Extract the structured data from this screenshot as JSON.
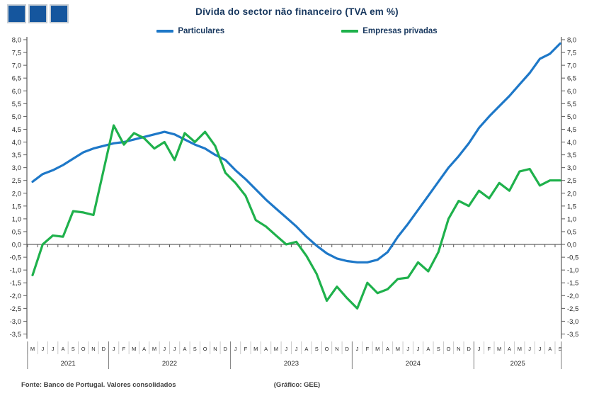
{
  "header": {
    "title": "Dívida do sector não financeiro (TVA em %)"
  },
  "logo": {
    "name": "three-blue-squares-logo",
    "square_color": "#15569e",
    "border_color": "#c6cdd4"
  },
  "footer": {
    "source": "Fonte: Banco de Portugal. Valores consolidados",
    "credit": "(Gráfico: GEE)"
  },
  "chart_data": {
    "type": "line",
    "title": "Dívida do sector não financeiro (TVA em %)",
    "xlabel": "",
    "ylabel": "",
    "ylim": [
      -3.5,
      8.0
    ],
    "y_step": 0.5,
    "grid": false,
    "legend_position": "top-center",
    "y_axis": {
      "tick_labels": [
        "8,0",
        "7,5",
        "7,0",
        "6,5",
        "6,0",
        "5,5",
        "5,0",
        "4,5",
        "4,0",
        "3,5",
        "3,0",
        "2,5",
        "2,0",
        "1,5",
        "1,0",
        "0,5",
        "0,0",
        "-0,5",
        "-1,0",
        "-1,5",
        "-2,0",
        "-2,5",
        "-3,0",
        "-3,5"
      ],
      "mirrored_right": true
    },
    "x_axis": {
      "years": [
        {
          "label": "2021",
          "months": [
            "M",
            "J",
            "J",
            "A",
            "S",
            "O",
            "N",
            "D"
          ]
        },
        {
          "label": "2022",
          "months": [
            "J",
            "F",
            "M",
            "A",
            "M",
            "J",
            "J",
            "A",
            "S",
            "O",
            "N",
            "D"
          ]
        },
        {
          "label": "2023",
          "months": [
            "J",
            "F",
            "M",
            "A",
            "M",
            "J",
            "J",
            "A",
            "S",
            "O",
            "N",
            "D"
          ]
        },
        {
          "label": "2024",
          "months": [
            "J",
            "F",
            "M",
            "A",
            "M",
            "J",
            "J",
            "A",
            "S",
            "O",
            "N",
            "D"
          ]
        },
        {
          "label": "2025",
          "months": [
            "J",
            "F",
            "M",
            "A",
            "M",
            "J",
            "J",
            "A",
            "S"
          ]
        }
      ]
    },
    "series": [
      {
        "name": "Particulares",
        "color": "#1e78c8",
        "values": [
          2.45,
          2.75,
          2.9,
          3.1,
          3.35,
          3.6,
          3.75,
          3.85,
          3.95,
          4.0,
          4.1,
          4.2,
          4.3,
          4.4,
          4.3,
          4.1,
          3.9,
          3.75,
          3.5,
          3.3,
          2.9,
          2.55,
          2.15,
          1.75,
          1.4,
          1.05,
          0.7,
          0.3,
          -0.05,
          -0.35,
          -0.55,
          -0.65,
          -0.7,
          -0.7,
          -0.6,
          -0.3,
          0.3,
          0.8,
          1.35,
          1.9,
          2.45,
          3.0,
          3.45,
          3.95,
          4.55,
          5.0,
          5.4,
          5.8,
          6.25,
          6.7,
          7.25,
          7.45,
          7.85
        ]
      },
      {
        "name": "Empresas privadas",
        "color": "#1fb14c",
        "values": [
          -1.2,
          0.0,
          0.35,
          0.3,
          1.3,
          1.25,
          1.15,
          2.9,
          4.65,
          3.9,
          4.35,
          4.15,
          3.75,
          4.0,
          3.3,
          4.35,
          4.0,
          4.4,
          3.85,
          2.8,
          2.4,
          1.9,
          0.95,
          0.7,
          0.35,
          0.0,
          0.1,
          -0.45,
          -1.15,
          -2.2,
          -1.65,
          -2.1,
          -2.5,
          -1.5,
          -1.9,
          -1.75,
          -1.35,
          -1.3,
          -0.7,
          -1.05,
          -0.3,
          1.0,
          1.7,
          1.5,
          2.1,
          1.8,
          2.4,
          2.1,
          2.85,
          2.95,
          2.3,
          2.5,
          2.5
        ]
      }
    ],
    "colors": {
      "axis_line": "#595959",
      "zero_line": "#595959",
      "month_separator": "#bfbfbf",
      "year_separator": "#7f7f7f",
      "tick_text": "#262626"
    }
  },
  "legend": {
    "items": [
      {
        "label": "Particulares"
      },
      {
        "label": "Empresas privadas"
      }
    ]
  }
}
